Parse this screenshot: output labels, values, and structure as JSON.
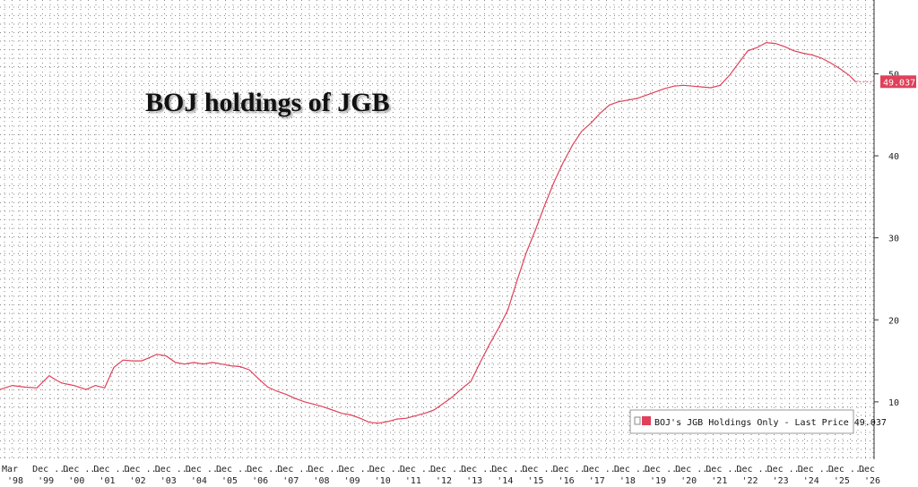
{
  "chart_data": {
    "type": "line",
    "title": "BOJ holdings of JGB",
    "xlabel": "",
    "ylabel": "",
    "ylim": [
      3,
      59
    ],
    "xlim": [
      1998.2,
      2026.6
    ],
    "y_ticks": [
      10,
      20,
      30,
      40,
      50
    ],
    "x_ticks": [
      {
        "top": "Mar",
        "bottom": "'98"
      },
      {
        "top": "Dec ...",
        "bottom": "'99"
      },
      {
        "top": "Dec ...",
        "bottom": "'00"
      },
      {
        "top": "Dec ...",
        "bottom": "'01"
      },
      {
        "top": "Dec ...",
        "bottom": "'02"
      },
      {
        "top": "Dec ...",
        "bottom": "'03"
      },
      {
        "top": "Dec ...",
        "bottom": "'04"
      },
      {
        "top": "Dec ...",
        "bottom": "'05"
      },
      {
        "top": "Dec ...",
        "bottom": "'06"
      },
      {
        "top": "Dec ...",
        "bottom": "'07"
      },
      {
        "top": "Dec ...",
        "bottom": "'08"
      },
      {
        "top": "Dec ...",
        "bottom": "'09"
      },
      {
        "top": "Dec ...",
        "bottom": "'10"
      },
      {
        "top": "Dec ...",
        "bottom": "'11"
      },
      {
        "top": "Dec ...",
        "bottom": "'12"
      },
      {
        "top": "Dec ...",
        "bottom": "'13"
      },
      {
        "top": "Dec ...",
        "bottom": "'14"
      },
      {
        "top": "Dec ...",
        "bottom": "'15"
      },
      {
        "top": "Dec ...",
        "bottom": "'16"
      },
      {
        "top": "Dec ...",
        "bottom": "'17"
      },
      {
        "top": "Dec ...",
        "bottom": "'18"
      },
      {
        "top": "Dec ...",
        "bottom": "'19"
      },
      {
        "top": "Dec ...",
        "bottom": "'20"
      },
      {
        "top": "Dec ...",
        "bottom": "'21"
      },
      {
        "top": "Dec ...",
        "bottom": "'22"
      },
      {
        "top": "Dec ...",
        "bottom": "'23"
      },
      {
        "top": "Dec ...",
        "bottom": "'24"
      },
      {
        "top": "Dec ...",
        "bottom": "'25"
      },
      {
        "top": "Dec",
        "bottom": "'26"
      }
    ],
    "grid": true,
    "legend_position": "bottom-right",
    "legend_text": "BOJ's JGB Holdings Only - Last Price 49.037",
    "last_value_label": "49.037",
    "series": [
      {
        "name": "BOJ's JGB Holdings Only",
        "color": "#e0405a",
        "x": [
          1998.2,
          1998.6,
          1999.0,
          1999.4,
          1999.8,
          2000.0,
          2000.2,
          2000.6,
          2001.0,
          2001.3,
          2001.6,
          2001.9,
          2002.2,
          2002.5,
          2002.8,
          2003.0,
          2003.3,
          2003.6,
          2003.9,
          2004.2,
          2004.5,
          2004.8,
          2005.1,
          2005.4,
          2005.7,
          2006.0,
          2006.3,
          2006.6,
          2006.9,
          2007.2,
          2007.5,
          2007.8,
          2008.1,
          2008.4,
          2008.7,
          2009.0,
          2009.3,
          2009.6,
          2009.9,
          2010.2,
          2010.5,
          2010.8,
          2011.1,
          2011.4,
          2011.7,
          2012.0,
          2012.3,
          2012.6,
          2012.9,
          2013.2,
          2013.5,
          2013.8,
          2014.1,
          2014.4,
          2014.7,
          2015.0,
          2015.3,
          2015.6,
          2015.9,
          2016.2,
          2016.5,
          2016.8,
          2017.1,
          2017.4,
          2017.7,
          2018.0,
          2018.3,
          2018.6,
          2018.9,
          2019.2,
          2019.5,
          2019.8,
          2020.1,
          2020.4,
          2020.7,
          2021.0,
          2021.3,
          2021.6,
          2021.9,
          2022.2,
          2022.5,
          2022.8,
          2023.1,
          2023.4,
          2023.7,
          2024.0,
          2024.3,
          2024.6,
          2024.9,
          2025.2,
          2025.5,
          2025.8,
          2026.0
        ],
        "values": [
          11.5,
          12.0,
          11.8,
          11.7,
          13.2,
          12.7,
          12.3,
          12.0,
          11.5,
          12.0,
          11.7,
          14.2,
          15.1,
          15.0,
          15.0,
          15.3,
          15.8,
          15.6,
          14.8,
          14.6,
          14.8,
          14.6,
          14.8,
          14.6,
          14.4,
          14.3,
          13.9,
          12.8,
          11.8,
          11.3,
          10.9,
          10.4,
          10.0,
          9.7,
          9.4,
          9.0,
          8.6,
          8.4,
          8.0,
          7.5,
          7.4,
          7.6,
          7.9,
          8.0,
          8.3,
          8.6,
          9.0,
          9.8,
          10.6,
          11.6,
          12.5,
          14.8,
          17.0,
          19.0,
          21.2,
          24.8,
          28.2,
          31.0,
          34.0,
          36.8,
          39.2,
          41.3,
          43.0,
          44.0,
          45.2,
          46.2,
          46.6,
          46.8,
          47.0,
          47.4,
          47.8,
          48.2,
          48.5,
          48.6,
          48.5,
          48.4,
          48.3,
          48.6,
          49.8,
          51.3,
          52.8,
          53.2,
          53.8,
          53.7,
          53.3,
          52.8,
          52.5,
          52.3,
          51.9,
          51.3,
          50.6,
          49.8,
          49.037
        ]
      }
    ]
  }
}
